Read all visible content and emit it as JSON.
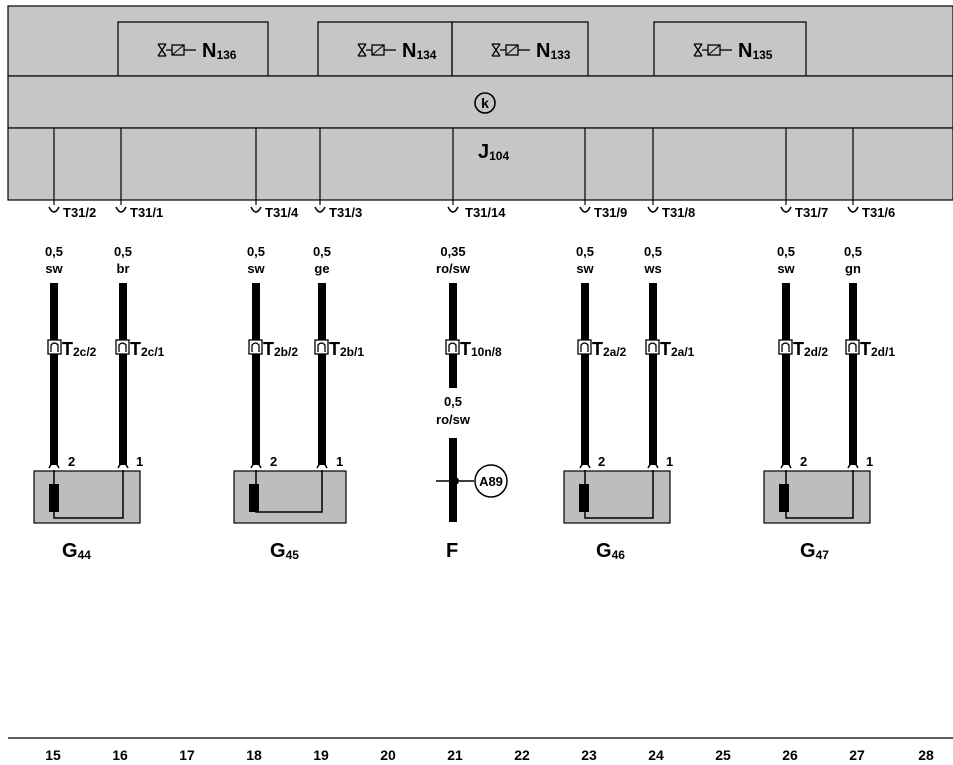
{
  "module": {
    "name": "J",
    "name_sub": "104",
    "symbol": "k",
    "colors": {
      "fill": "#c6c6c6",
      "stroke": "#000000",
      "box": "#bdbdbd"
    }
  },
  "valves": [
    {
      "name": "N",
      "sub": "136"
    },
    {
      "name": "N",
      "sub": "134"
    },
    {
      "name": "N",
      "sub": "133"
    },
    {
      "name": "N",
      "sub": "135"
    }
  ],
  "pins": [
    "T31/2",
    "T31/1",
    "T31/4",
    "T31/3",
    "T31/14",
    "T31/9",
    "T31/8",
    "T31/7",
    "T31/6"
  ],
  "wires": [
    {
      "size": "0,5",
      "color": "sw"
    },
    {
      "size": "0,5",
      "color": "br"
    },
    {
      "size": "0,5",
      "color": "sw"
    },
    {
      "size": "0,5",
      "color": "ge"
    },
    {
      "size": "0,35",
      "color": "ro/sw"
    },
    {
      "size": "0,5",
      "color": "sw"
    },
    {
      "size": "0,5",
      "color": "ws"
    },
    {
      "size": "0,5",
      "color": "sw"
    },
    {
      "size": "0,5",
      "color": "gn"
    }
  ],
  "connectors": [
    {
      "name": "T",
      "sub": "2c/2"
    },
    {
      "name": "T",
      "sub": "2c/1"
    },
    {
      "name": "T",
      "sub": "2b/2"
    },
    {
      "name": "T",
      "sub": "2b/1"
    },
    {
      "name": "T",
      "sub": "10n/8"
    },
    {
      "name": "T",
      "sub": "2a/2"
    },
    {
      "name": "T",
      "sub": "2a/1"
    },
    {
      "name": "T",
      "sub": "2d/2"
    },
    {
      "name": "T",
      "sub": "2d/1"
    }
  ],
  "lower_wire": {
    "size": "0,5",
    "color": "ro/sw"
  },
  "sensor_pins": [
    "2",
    "1",
    "2",
    "1",
    "2",
    "1",
    "2",
    "1"
  ],
  "sensors": [
    {
      "name": "G",
      "sub": "44"
    },
    {
      "name": "G",
      "sub": "45"
    },
    {
      "name": "G",
      "sub": "46"
    },
    {
      "name": "G",
      "sub": "47"
    }
  ],
  "ground": {
    "label": "A89",
    "name": "F"
  },
  "columns": [
    "15",
    "16",
    "17",
    "18",
    "19",
    "20",
    "21",
    "22",
    "23",
    "24",
    "25",
    "26",
    "27",
    "28"
  ]
}
